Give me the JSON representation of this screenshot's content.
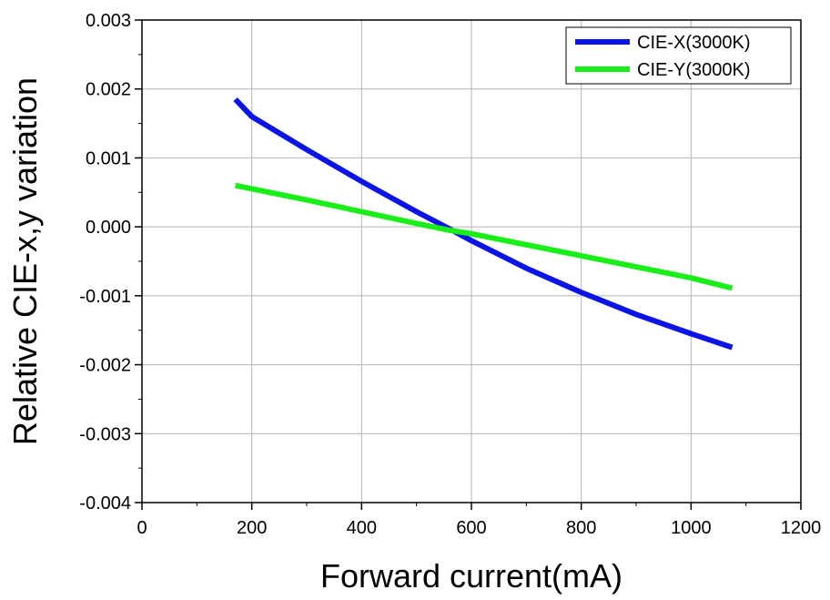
{
  "chart_data": {
    "type": "line",
    "xlabel": "Forward current(mA)",
    "ylabel": "Relative CIE-x,y variation",
    "xlim": [
      0,
      1200
    ],
    "ylim": [
      -0.004,
      0.003
    ],
    "xticks": [
      0,
      200,
      400,
      600,
      800,
      1000,
      1200
    ],
    "xtick_labels": [
      "0",
      "200",
      "400",
      "600",
      "800",
      "1000",
      "1200"
    ],
    "yticks": [
      0.003,
      0.002,
      0.001,
      0.0,
      -0.001,
      -0.002,
      -0.003,
      -0.004
    ],
    "ytick_labels": [
      "0.003",
      "0.002",
      "0.001",
      "0.000",
      "-0.001",
      "-0.002",
      "-0.003",
      "-0.004"
    ],
    "grid": true,
    "legend_position": "top-right",
    "series": [
      {
        "name": "CIE-X(3000K)",
        "color": "#0b14e6",
        "x": [
          170,
          200,
          300,
          400,
          500,
          560,
          600,
          700,
          800,
          900,
          1000,
          1075
        ],
        "y": [
          0.00185,
          0.0016,
          0.00112,
          0.00066,
          0.00022,
          -3e-05,
          -0.0002,
          -0.0006,
          -0.00095,
          -0.00127,
          -0.00155,
          -0.00175
        ]
      },
      {
        "name": "CIE-Y(3000K)",
        "color": "#19ee19",
        "x": [
          170,
          300,
          400,
          500,
          560,
          600,
          700,
          800,
          900,
          1000,
          1075
        ],
        "y": [
          0.0006,
          0.00039,
          0.00022,
          5e-05,
          -5e-05,
          -0.0001,
          -0.00026,
          -0.00042,
          -0.00058,
          -0.00074,
          -0.00089
        ]
      }
    ]
  }
}
